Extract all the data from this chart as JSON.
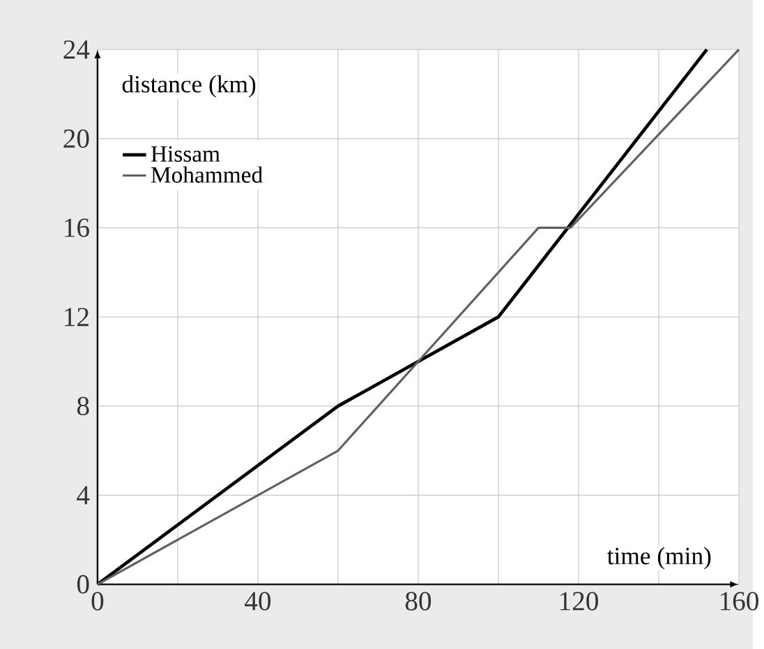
{
  "chart_data": {
    "type": "line",
    "xlabel": "time (min)",
    "ylabel": "distance (km)",
    "xlim": [
      0,
      160
    ],
    "ylim": [
      0,
      24
    ],
    "xticks": [
      0,
      {
        "value": 20,
        "label": null
      },
      40,
      {
        "value": 60,
        "label": null
      },
      80,
      {
        "value": 100,
        "label": null
      },
      120,
      {
        "value": 140,
        "label": null
      },
      160
    ],
    "yticks": [
      0,
      4,
      8,
      12,
      16,
      20,
      24
    ],
    "grid": true,
    "legend": "top left",
    "marker": "none",
    "line_style": "solid",
    "series": [
      {
        "name": "Hissam",
        "color": "#000000",
        "x": [
          0,
          60,
          100,
          152
        ],
        "values": [
          0,
          8,
          12,
          24
        ]
      },
      {
        "name": "Mohammed",
        "color": "#606060",
        "x": [
          0,
          60,
          110,
          118,
          160
        ],
        "values": [
          0,
          6,
          16,
          16,
          24
        ]
      }
    ]
  }
}
